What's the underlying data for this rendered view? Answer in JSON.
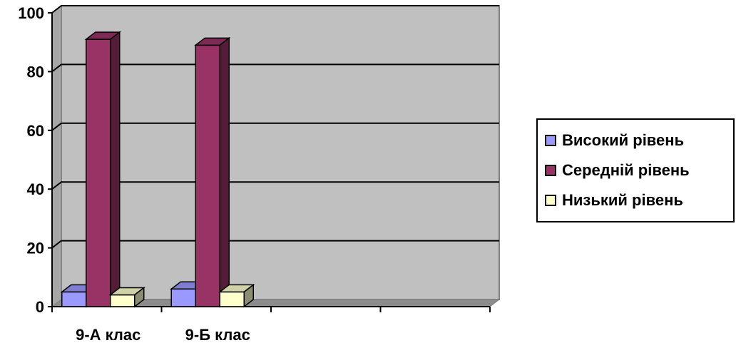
{
  "chart_data": {
    "type": "bar",
    "categories": [
      "9-А клас",
      "9-Б клас",
      "",
      ""
    ],
    "series": [
      {
        "name": "Високий рівень",
        "values": [
          5,
          6,
          null,
          null
        ],
        "color": "#9999ff"
      },
      {
        "name": "Середній рівень",
        "values": [
          91,
          89,
          null,
          null
        ],
        "color": "#993366"
      },
      {
        "name": "Низький рівень",
        "values": [
          4,
          5,
          null,
          null
        ],
        "color": "#ffffcc"
      }
    ],
    "y_ticks": [
      "0",
      "20",
      "40",
      "60",
      "80",
      "100"
    ],
    "ylim": [
      0,
      100
    ],
    "grid": true,
    "three_d": true,
    "legend_position": "right",
    "plot_background": "#c0c0c0"
  }
}
